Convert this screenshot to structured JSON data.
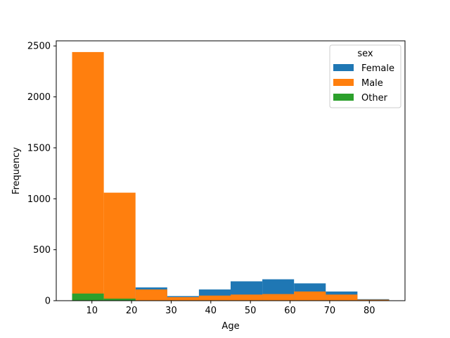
{
  "chart_data": {
    "type": "bar",
    "xlabel": "Age",
    "ylabel": "Frequency",
    "xlim": [
      1,
      89
    ],
    "ylim": [
      0,
      2550
    ],
    "bin_edges": [
      5,
      13,
      21,
      29,
      37,
      45,
      53,
      61,
      69,
      77,
      85
    ],
    "x_ticks": [
      10,
      20,
      30,
      40,
      50,
      60,
      70,
      80
    ],
    "y_ticks": [
      0,
      500,
      1000,
      1500,
      2000,
      2500
    ],
    "legend": {
      "title": "sex",
      "placement": "top-right"
    },
    "series": [
      {
        "name": "Female",
        "color": "#1f77b4",
        "values": [
          0,
          0,
          130,
          45,
          110,
          190,
          210,
          170,
          90,
          15
        ]
      },
      {
        "name": "Male",
        "color": "#ff7f0e",
        "values": [
          2440,
          1060,
          110,
          35,
          50,
          60,
          65,
          90,
          60,
          10
        ]
      },
      {
        "name": "Other",
        "color": "#2ca02c",
        "values": [
          70,
          20,
          0,
          0,
          0,
          0,
          0,
          0,
          0,
          0
        ]
      }
    ]
  }
}
